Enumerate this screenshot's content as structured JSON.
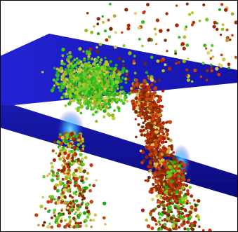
{
  "image": {
    "subject": "particle-fluid-flowing-through-slab-opening",
    "background_color": "#ffffff",
    "slab_color": "#1a1ab8",
    "slab_glow_color": "#3fb8ff",
    "particle_colors": [
      "#b32200",
      "#8a2a00",
      "#cc4a10",
      "#8fae10",
      "#3bbf1f",
      "#1fa81a",
      "#d4c34a"
    ]
  }
}
